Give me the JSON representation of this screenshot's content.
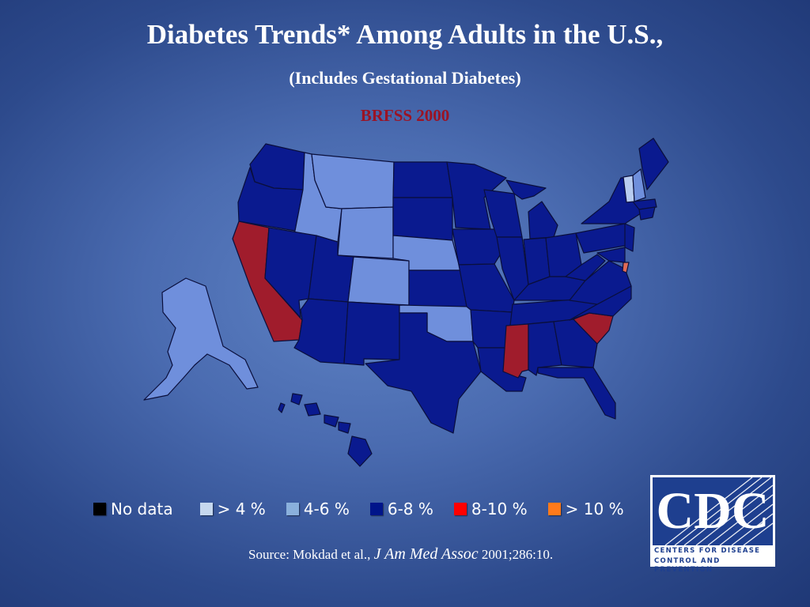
{
  "header": {
    "title": "Diabetes Trends* Among Adults in the U.S.,",
    "subtitle": "(Includes Gestational Diabetes)",
    "year_label": "BRFSS 2000"
  },
  "legend": [
    {
      "label": "No data",
      "color": "#000000"
    },
    {
      "label": "> 4 %",
      "color": "#c6d8ee"
    },
    {
      "label": "4-6 %",
      "color": "#8ab0dc"
    },
    {
      "label": "6-8 %",
      "color": "#00148a"
    },
    {
      "label": "8-10 %",
      "color": "#ff0000"
    },
    {
      "label": "> 10 %",
      "color": "#ff7a1a"
    }
  ],
  "map_colors": {
    "band_4_6": "#6f8fdc",
    "band_6_8": "#0a1a8f",
    "band_8_10": "#a01c2c",
    "band_below_4": "#b8ccf0"
  },
  "source": {
    "prefix": "Source: Mokdad et al.,",
    "journal": "J Am Med Assoc",
    "suffix": "2001;286:10."
  },
  "logo": {
    "acronym": "CDC",
    "line1": "CENTERS FOR DISEASE",
    "line2": "CONTROL AND PREVENTION"
  }
}
